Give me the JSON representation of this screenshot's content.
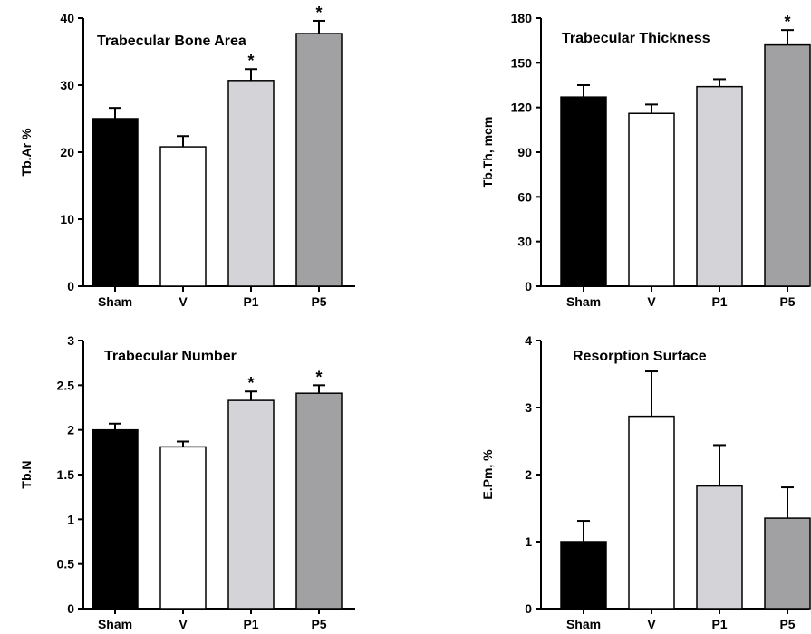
{
  "colors": {
    "Sham": "#000000",
    "V": "#ffffff",
    "P1": "#d4d4d8",
    "P5": "#a1a1a3"
  },
  "chart_data": [
    {
      "type": "bar",
      "title": "Trabecular Bone Area",
      "ylabel": "Tb.Ar %",
      "categories": [
        "Sham",
        "V",
        "P1",
        "P5"
      ],
      "values": [
        25,
        20.8,
        30.7,
        37.7
      ],
      "errors": [
        1.6,
        1.6,
        1.7,
        1.9
      ],
      "significant": [
        false,
        false,
        true,
        true
      ],
      "ylim": [
        0,
        40
      ],
      "yticks": [
        0,
        10,
        20,
        30,
        40
      ],
      "ytick_labels": [
        "0",
        "10",
        "20",
        "30",
        "40"
      ],
      "sig_marker": "*"
    },
    {
      "type": "bar",
      "title": "Trabecular Thickness",
      "ylabel": "Tb.Th, mcm",
      "categories": [
        "Sham",
        "V",
        "P1",
        "P5"
      ],
      "values": [
        127,
        116,
        134,
        162
      ],
      "errors": [
        8,
        6,
        5,
        10
      ],
      "significant": [
        false,
        false,
        false,
        true
      ],
      "ylim": [
        0,
        180
      ],
      "yticks": [
        0,
        30,
        60,
        90,
        120,
        150,
        180
      ],
      "ytick_labels": [
        "0",
        "30",
        "60",
        "90",
        "120",
        "150",
        "180"
      ],
      "sig_marker": "*"
    },
    {
      "type": "bar",
      "title": "Trabecular Number",
      "ylabel": "Tb.N",
      "categories": [
        "Sham",
        "V",
        "P1",
        "P5"
      ],
      "values": [
        2.0,
        1.81,
        2.33,
        2.41
      ],
      "errors": [
        0.07,
        0.06,
        0.1,
        0.09
      ],
      "significant": [
        false,
        false,
        true,
        true
      ],
      "ylim": [
        0,
        3
      ],
      "yticks": [
        0,
        0.5,
        1,
        1.5,
        2,
        2.5,
        3
      ],
      "ytick_labels": [
        "0",
        "0.5",
        "1",
        "1.5",
        "2",
        "2.5",
        "3"
      ],
      "sig_marker": "*"
    },
    {
      "type": "bar",
      "title": "Resorption Surface",
      "ylabel": "E.Pm, %",
      "categories": [
        "Sham",
        "V",
        "P1",
        "P5"
      ],
      "values": [
        1.0,
        2.87,
        1.83,
        1.35
      ],
      "errors": [
        0.31,
        0.67,
        0.61,
        0.46
      ],
      "significant": [
        false,
        false,
        false,
        false
      ],
      "ylim": [
        0,
        4
      ],
      "yticks": [
        0,
        1,
        2,
        3,
        4
      ],
      "ytick_labels": [
        "0",
        "1",
        "2",
        "3",
        "4"
      ],
      "sig_marker": "*"
    }
  ]
}
